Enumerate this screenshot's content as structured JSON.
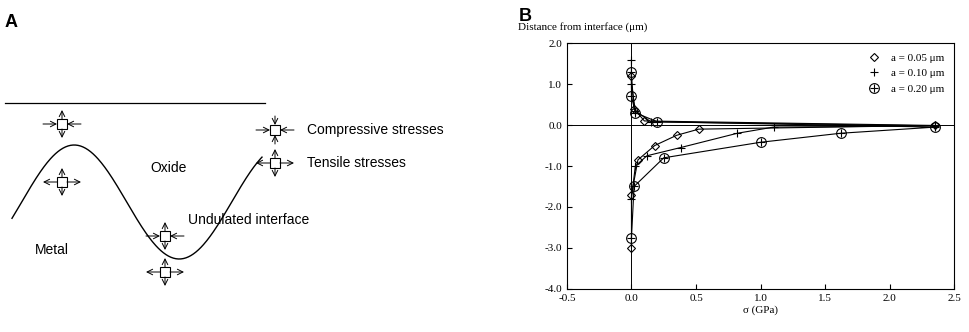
{
  "diagram": {
    "panel_label": "A",
    "regions": {
      "oxide": "Oxide",
      "metal": "Metal"
    },
    "interface_label": "Undulated interface",
    "key": [
      {
        "label": "Compressive stresses"
      },
      {
        "label": "Tensile stresses"
      }
    ]
  },
  "chart_data": {
    "type": "line",
    "panel_label": "B",
    "y_label": "Distance from interface (μm)",
    "x_label": "σ (GPa)",
    "xlim": [
      -0.5,
      2.5
    ],
    "xticks": [
      {
        "value": -0.5,
        "label": "-0.5"
      },
      {
        "value": 0,
        "label": "0.0"
      },
      {
        "value": 0.5,
        "label": "0.5"
      },
      {
        "value": 1,
        "label": "1.0"
      },
      {
        "value": 1.5,
        "label": "1.5"
      },
      {
        "value": 2,
        "label": "2.0"
      },
      {
        "value": 2.5,
        "label": "2.5"
      }
    ],
    "ylim": [
      -4,
      2
    ],
    "yticks": [
      {
        "value": -4,
        "label": "-4.0"
      },
      {
        "value": -3,
        "label": "-3.0"
      },
      {
        "value": -2,
        "label": "-2.0"
      },
      {
        "value": -1,
        "label": "-1.0"
      },
      {
        "value": 0,
        "label": "0.0"
      },
      {
        "value": 1,
        "label": "1.0"
      },
      {
        "value": 2,
        "label": "2.0"
      }
    ],
    "legend": "upper right",
    "series": [
      {
        "name": "a = 0.05 μm",
        "color": "#000000",
        "marker": "diamond",
        "x": [
          0.0,
          0.02,
          0.1,
          2.35,
          0.52,
          0.35,
          0.18,
          0.05,
          0.0,
          0.0
        ],
        "values": [
          1.2,
          0.4,
          0.1,
          -0.01,
          -0.1,
          -0.25,
          -0.5,
          -0.85,
          -1.7,
          -3.0
        ]
      },
      {
        "name": "a = 0.10 μm",
        "color": "#000000",
        "marker": "plus",
        "x": [
          0.0,
          0.0,
          0.03,
          0.15,
          2.35,
          1.1,
          0.82,
          0.38,
          0.12,
          0.03,
          0.0
        ],
        "values": [
          1.6,
          1.0,
          0.35,
          0.08,
          -0.02,
          -0.05,
          -0.2,
          -0.55,
          -0.75,
          -1.0,
          -1.8
        ]
      },
      {
        "name": "a = 0.20 μm",
        "color": "#000000",
        "marker": "circled_plus",
        "x": [
          0.0,
          0.0,
          0.03,
          0.2,
          2.35,
          1.62,
          1.0,
          0.25,
          0.02,
          0.0
        ],
        "values": [
          1.3,
          0.7,
          0.3,
          0.08,
          -0.05,
          -0.2,
          -0.42,
          -0.8,
          -1.5,
          -2.75
        ]
      }
    ]
  }
}
